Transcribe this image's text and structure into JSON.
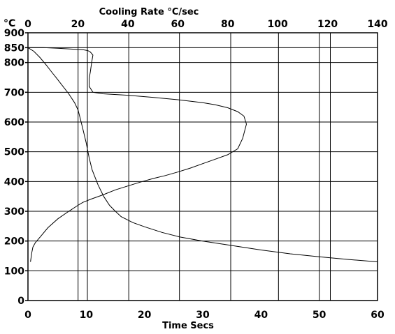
{
  "chart_data": {
    "type": "line",
    "temperature_unit_label": "°C",
    "top_axis": {
      "label": "Cooling Rate  °C/sec",
      "range": [
        0,
        140
      ],
      "ticks": [
        0,
        20,
        40,
        60,
        80,
        100,
        120,
        140
      ]
    },
    "bottom_axis": {
      "label": "Time  Secs",
      "range": [
        0,
        60
      ],
      "ticks": [
        0,
        10,
        20,
        30,
        40,
        50,
        60
      ]
    },
    "left_axis": {
      "range": [
        0,
        900
      ],
      "ticks": [
        0,
        100,
        200,
        300,
        400,
        500,
        600,
        700,
        800,
        850,
        900
      ]
    },
    "grid": true,
    "reference_lines_time": [
      8.6,
      10.2,
      17.3,
      26.0,
      34.8,
      43.0,
      50.0,
      51.9
    ],
    "series": [
      {
        "axis": "time",
        "x": [
          0,
          1,
          2,
          3,
          4,
          5,
          6,
          7,
          8,
          8.6,
          9,
          9.5,
          10,
          10.5,
          11,
          12,
          13,
          14,
          15,
          16,
          18,
          20,
          23,
          26,
          30,
          35,
          40,
          45,
          50,
          55,
          60
        ],
        "y": [
          850,
          838,
          818,
          795,
          770,
          745,
          720,
          695,
          665,
          640,
          610,
          570,
          530,
          480,
          440,
          390,
          350,
          320,
          300,
          282,
          262,
          248,
          229,
          214,
          200,
          185,
          170,
          157,
          147,
          138,
          130
        ]
      },
      {
        "axis": "cooling_rate",
        "x": [
          1,
          1.5,
          2,
          3,
          5,
          8,
          12,
          16,
          20,
          22,
          25,
          30,
          35,
          40,
          45,
          50,
          55,
          60,
          65,
          70,
          75,
          80,
          84,
          86,
          87.5,
          86.5,
          84,
          80,
          75,
          70,
          60,
          50,
          40,
          30,
          26,
          24.5,
          24.5,
          25,
          25.5,
          26,
          25,
          24,
          22,
          18,
          12,
          6,
          0
        ],
        "y": [
          130,
          160,
          180,
          195,
          215,
          245,
          275,
          298,
          320,
          330,
          340,
          355,
          372,
          385,
          398,
          410,
          420,
          432,
          445,
          460,
          475,
          490,
          510,
          545,
          593,
          620,
          635,
          648,
          658,
          665,
          675,
          683,
          690,
          695,
          700,
          720,
          745,
          770,
          800,
          825,
          835,
          840,
          843,
          845,
          848,
          850,
          850
        ]
      }
    ]
  }
}
